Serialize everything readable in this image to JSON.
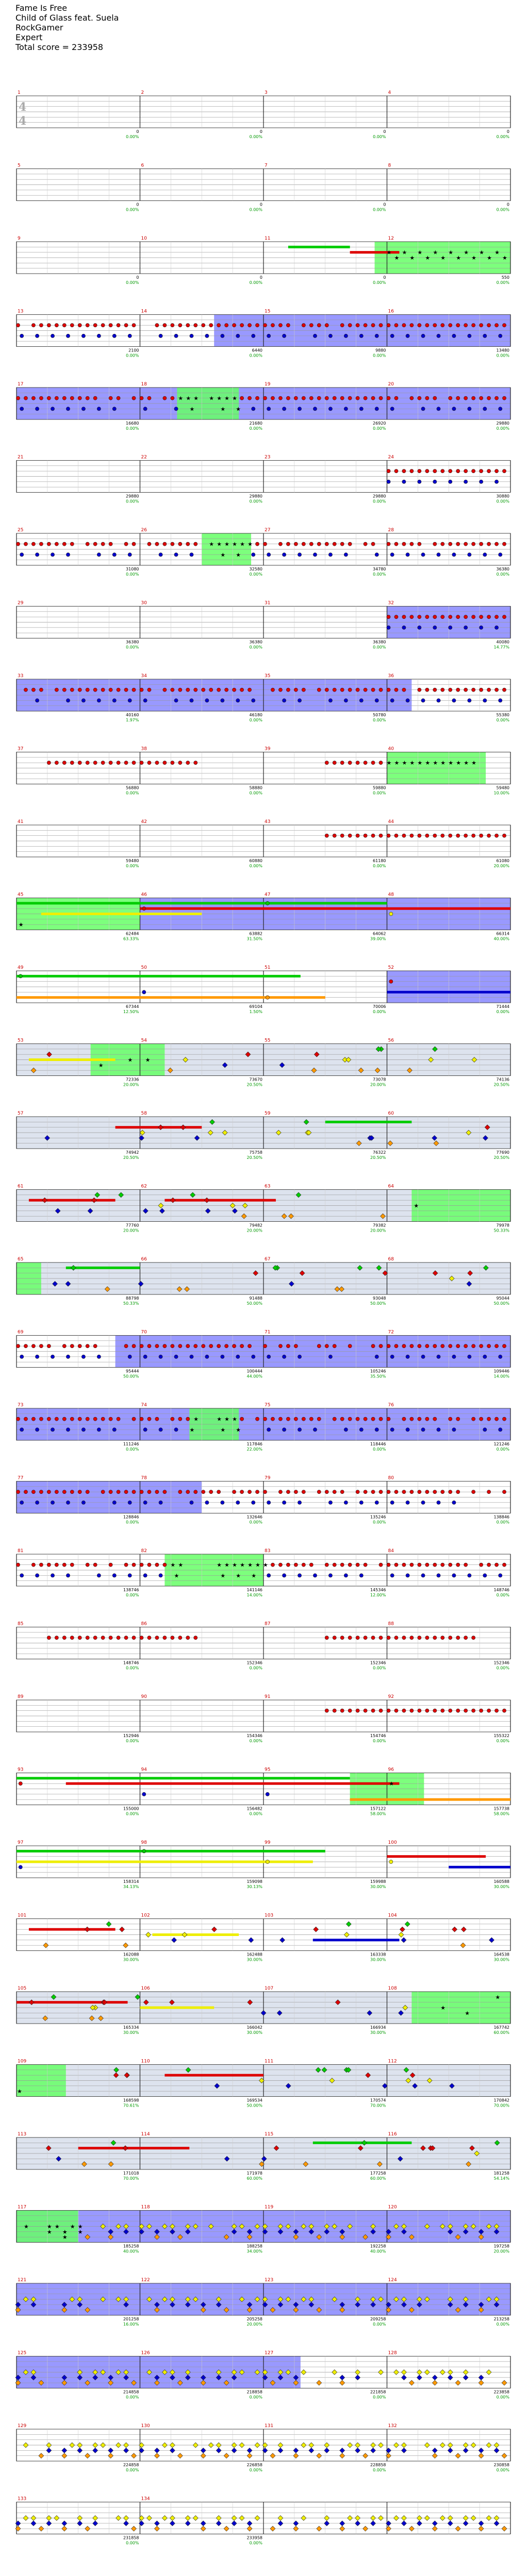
{
  "song": {
    "title": "Fame Is Free",
    "artist": "Child of Glass feat. Suela",
    "charter": "RockGamer",
    "difficulty": "Expert",
    "total_score_label": "Total score = 233958"
  },
  "time_signature": [
    "4",
    "4"
  ],
  "colors": {
    "green": "#00cc00",
    "red": "#dd0000",
    "yellow": "#eeee00",
    "blue": "#0000cc",
    "orange": "#ff9900",
    "sp_fill": "#66ff66",
    "solo_fill": "#9999ff",
    "bg_fill": "#dde3ee"
  },
  "measures": [
    {
      "n": "1",
      "score": "0",
      "pct": "0.00%"
    },
    {
      "n": "2",
      "score": "0",
      "pct": "0.00%"
    },
    {
      "n": "3",
      "score": "0",
      "pct": "0.00%"
    },
    {
      "n": "4",
      "score": "0",
      "pct": "0.00%"
    },
    {
      "n": "5",
      "score": "0",
      "pct": "0.00%"
    },
    {
      "n": "6",
      "score": "0",
      "pct": "0.00%"
    },
    {
      "n": "7",
      "score": "0",
      "pct": "0.00%"
    },
    {
      "n": "8",
      "score": "0",
      "pct": "0.00%"
    },
    {
      "n": "9",
      "score": "0",
      "pct": "0.00%"
    },
    {
      "n": "10",
      "score": "0",
      "pct": "0.00%"
    },
    {
      "n": "11",
      "score": "0",
      "pct": "0.00%"
    },
    {
      "n": "12",
      "score": "550",
      "pct": "0.00%"
    },
    {
      "n": "13",
      "score": "2100",
      "pct": "0.00%"
    },
    {
      "n": "14",
      "score": "6440",
      "pct": "0.00%"
    },
    {
      "n": "15",
      "score": "9880",
      "pct": "0.00%"
    },
    {
      "n": "16",
      "score": "13480",
      "pct": "0.00%"
    },
    {
      "n": "17",
      "score": "16680",
      "pct": "0.00%"
    },
    {
      "n": "18",
      "score": "21680",
      "pct": "0.00%"
    },
    {
      "n": "19",
      "score": "26920",
      "pct": "0.00%"
    },
    {
      "n": "20",
      "score": "29880",
      "pct": "0.00%"
    },
    {
      "n": "21",
      "score": "29880",
      "pct": "0.00%"
    },
    {
      "n": "22",
      "score": "29880",
      "pct": "0.00%"
    },
    {
      "n": "23",
      "score": "29880",
      "pct": "0.00%"
    },
    {
      "n": "24",
      "score": "30880",
      "pct": "0.00%"
    },
    {
      "n": "25",
      "score": "31080",
      "pct": "0.00%"
    },
    {
      "n": "26",
      "score": "32580",
      "pct": "0.00%"
    },
    {
      "n": "27",
      "score": "34780",
      "pct": "0.00%"
    },
    {
      "n": "28",
      "score": "36380",
      "pct": "0.00%"
    },
    {
      "n": "29",
      "score": "36380",
      "pct": "0.00%"
    },
    {
      "n": "30",
      "score": "36380",
      "pct": "0.00%"
    },
    {
      "n": "31",
      "score": "36380",
      "pct": "0.00%"
    },
    {
      "n": "32",
      "score": "40080",
      "pct": "14.77%"
    },
    {
      "n": "33",
      "score": "40160",
      "pct": "1.97%"
    },
    {
      "n": "34",
      "score": "46180",
      "pct": "0.00%"
    },
    {
      "n": "35",
      "score": "50780",
      "pct": "0.00%"
    },
    {
      "n": "36",
      "score": "55380",
      "pct": "0.00%"
    },
    {
      "n": "37",
      "score": "56880",
      "pct": "0.00%"
    },
    {
      "n": "38",
      "score": "58880",
      "pct": "0.00%"
    },
    {
      "n": "39",
      "score": "59880",
      "pct": "0.00%"
    },
    {
      "n": "40",
      "score": "59480",
      "pct": "10.00%"
    },
    {
      "n": "41",
      "score": "59480",
      "pct": "0.00%"
    },
    {
      "n": "42",
      "score": "60880",
      "pct": "0.00%"
    },
    {
      "n": "43",
      "score": "61180",
      "pct": "0.00%"
    },
    {
      "n": "44",
      "score": "61080",
      "pct": "20.00%"
    },
    {
      "n": "45",
      "score": "62484",
      "pct": "63.33%"
    },
    {
      "n": "46",
      "score": "63882",
      "pct": "31.50%"
    },
    {
      "n": "47",
      "score": "64062",
      "pct": "39.00%"
    },
    {
      "n": "48",
      "score": "66314",
      "pct": "40.00%"
    },
    {
      "n": "49",
      "score": "67344",
      "pct": "12.50%"
    },
    {
      "n": "50",
      "score": "69104",
      "pct": "1.50%"
    },
    {
      "n": "51",
      "score": "70006",
      "pct": "0.00%"
    },
    {
      "n": "52",
      "score": "71444",
      "pct": "0.00%"
    },
    {
      "n": "53",
      "score": "72336",
      "pct": "20.00%"
    },
    {
      "n": "54",
      "score": "73670",
      "pct": "20.50%"
    },
    {
      "n": "55",
      "score": "73078",
      "pct": "20.00%"
    },
    {
      "n": "56",
      "score": "74136",
      "pct": "20.50%"
    },
    {
      "n": "57",
      "score": "74942",
      "pct": "20.50%"
    },
    {
      "n": "58",
      "score": "75758",
      "pct": "20.50%"
    },
    {
      "n": "59",
      "score": "76322",
      "pct": "20.50%"
    },
    {
      "n": "60",
      "score": "77690",
      "pct": "20.50%"
    },
    {
      "n": "61",
      "score": "77760",
      "pct": "20.00%"
    },
    {
      "n": "62",
      "score": "79482",
      "pct": "20.00%"
    },
    {
      "n": "63",
      "score": "79382",
      "pct": "20.00%"
    },
    {
      "n": "64",
      "score": "79978",
      "pct": "50.33%"
    },
    {
      "n": "65",
      "score": "88798",
      "pct": "50.33%"
    },
    {
      "n": "66",
      "score": "91488",
      "pct": "50.00%"
    },
    {
      "n": "67",
      "score": "93048",
      "pct": "50.00%"
    },
    {
      "n": "68",
      "score": "95044",
      "pct": "50.00%"
    },
    {
      "n": "69",
      "score": "95444",
      "pct": "50.00%"
    },
    {
      "n": "70",
      "score": "100444",
      "pct": "44.00%"
    },
    {
      "n": "71",
      "score": "105246",
      "pct": "35.50%"
    },
    {
      "n": "72",
      "score": "109446",
      "pct": "14.00%"
    },
    {
      "n": "73",
      "score": "111246",
      "pct": "0.00%"
    },
    {
      "n": "74",
      "score": "117846",
      "pct": "22.00%"
    },
    {
      "n": "75",
      "score": "118446",
      "pct": "0.00%"
    },
    {
      "n": "76",
      "score": "121246",
      "pct": "0.00%"
    },
    {
      "n": "77",
      "score": "128846",
      "pct": "0.00%"
    },
    {
      "n": "78",
      "score": "132646",
      "pct": "0.00%"
    },
    {
      "n": "79",
      "score": "135246",
      "pct": "0.00%"
    },
    {
      "n": "80",
      "score": "138846",
      "pct": "0.00%"
    },
    {
      "n": "81",
      "score": "138746",
      "pct": "0.00%"
    },
    {
      "n": "82",
      "score": "141146",
      "pct": "14.00%"
    },
    {
      "n": "83",
      "score": "145346",
      "pct": "12.00%"
    },
    {
      "n": "84",
      "score": "148746",
      "pct": "0.00%"
    },
    {
      "n": "85",
      "score": "148746",
      "pct": "0.00%"
    },
    {
      "n": "86",
      "score": "152346",
      "pct": "0.00%"
    },
    {
      "n": "87",
      "score": "152346",
      "pct": "0.00%"
    },
    {
      "n": "88",
      "score": "152346",
      "pct": "0.00%"
    },
    {
      "n": "89",
      "score": "152946",
      "pct": "0.00%"
    },
    {
      "n": "90",
      "score": "154346",
      "pct": "0.00%"
    },
    {
      "n": "91",
      "score": "154746",
      "pct": "0.00%"
    },
    {
      "n": "92",
      "score": "155322",
      "pct": "0.00%"
    },
    {
      "n": "93",
      "score": "155000",
      "pct": "0.00%"
    },
    {
      "n": "94",
      "score": "156482",
      "pct": "0.00%"
    },
    {
      "n": "95",
      "score": "157122",
      "pct": "58.00%"
    },
    {
      "n": "96",
      "score": "157738",
      "pct": "58.00%"
    },
    {
      "n": "97",
      "score": "158314",
      "pct": "34.13%"
    },
    {
      "n": "98",
      "score": "159098",
      "pct": "30.13%"
    },
    {
      "n": "99",
      "score": "159988",
      "pct": "30.00%"
    },
    {
      "n": "100",
      "score": "160588",
      "pct": "30.00%"
    },
    {
      "n": "101",
      "score": "162088",
      "pct": "30.00%"
    },
    {
      "n": "102",
      "score": "162488",
      "pct": "30.00%"
    },
    {
      "n": "103",
      "score": "163338",
      "pct": "30.00%"
    },
    {
      "n": "104",
      "score": "164538",
      "pct": "30.00%"
    },
    {
      "n": "105",
      "score": "165334",
      "pct": "30.00%"
    },
    {
      "n": "106",
      "score": "166042",
      "pct": "30.00%"
    },
    {
      "n": "107",
      "score": "166934",
      "pct": "30.00%"
    },
    {
      "n": "108",
      "score": "167742",
      "pct": "60.00%"
    },
    {
      "n": "109",
      "score": "168598",
      "pct": "70.61%"
    },
    {
      "n": "110",
      "score": "169534",
      "pct": "50.00%"
    },
    {
      "n": "111",
      "score": "170574",
      "pct": "70.00%"
    },
    {
      "n": "112",
      "score": "170842",
      "pct": "70.00%"
    },
    {
      "n": "113",
      "score": "171018",
      "pct": "70.00%"
    },
    {
      "n": "114",
      "score": "171978",
      "pct": "60.00%"
    },
    {
      "n": "115",
      "score": "177258",
      "pct": "60.00%"
    },
    {
      "n": "116",
      "score": "181258",
      "pct": "54.14%"
    },
    {
      "n": "117",
      "score": "185258",
      "pct": "40.00%"
    },
    {
      "n": "118",
      "score": "188258",
      "pct": "34.00%"
    },
    {
      "n": "119",
      "score": "192258",
      "pct": "40.00%"
    },
    {
      "n": "120",
      "score": "197258",
      "pct": "20.00%"
    },
    {
      "n": "121",
      "score": "201258",
      "pct": "16.00%"
    },
    {
      "n": "122",
      "score": "205258",
      "pct": "20.00%"
    },
    {
      "n": "123",
      "score": "209258",
      "pct": "0.00%"
    },
    {
      "n": "124",
      "score": "213258",
      "pct": "0.00%"
    },
    {
      "n": "125",
      "score": "214858",
      "pct": "0.00%"
    },
    {
      "n": "126",
      "score": "218858",
      "pct": "0.00%"
    },
    {
      "n": "127",
      "score": "221858",
      "pct": "0.00%"
    },
    {
      "n": "128",
      "score": "223858",
      "pct": "0.00%"
    },
    {
      "n": "129",
      "score": "224858",
      "pct": "0.00%"
    },
    {
      "n": "130",
      "score": "226858",
      "pct": "0.00%"
    },
    {
      "n": "131",
      "score": "228858",
      "pct": "0.00%"
    },
    {
      "n": "132",
      "score": "230858",
      "pct": "0.00%"
    },
    {
      "n": "133",
      "score": "231858",
      "pct": "0.00%"
    },
    {
      "n": "134",
      "score": "233958",
      "pct": "0.00%"
    }
  ],
  "rows": [
    {
      "style": "empty"
    },
    {
      "style": "empty"
    },
    {
      "style": "intro",
      "sp": [
        [
          2.9,
          4
        ]
      ],
      "sustain": [
        [
          2.2,
          2.7,
          "green"
        ],
        [
          2.7,
          3.1,
          "red"
        ]
      ]
    },
    {
      "style": "dense",
      "solo": [
        [
          1.6,
          4
        ]
      ]
    },
    {
      "style": "dense",
      "solo": [
        [
          0,
          4
        ]
      ],
      "sp": [
        [
          1.3,
          1.8
        ]
      ]
    },
    {
      "style": "sparse_right"
    },
    {
      "style": "dense",
      "sp": [
        [
          1.5,
          1.9
        ]
      ]
    },
    {
      "style": "sparse_right",
      "solo": [
        [
          3.0,
          4
        ]
      ]
    },
    {
      "style": "dense",
      "solo": [
        [
          0,
          3.2
        ]
      ]
    },
    {
      "style": "mid",
      "sp": [
        [
          3.0,
          3.8
        ]
      ]
    },
    {
      "style": "mid_right"
    },
    {
      "style": "sustain",
      "sp": [
        [
          0,
          1
        ]
      ],
      "solo": [
        [
          1,
          4
        ]
      ],
      "sustain": [
        [
          0,
          3.0,
          "green"
        ],
        [
          1.0,
          4,
          "red"
        ],
        [
          0.2,
          1.5,
          "yellow"
        ]
      ]
    },
    {
      "style": "sustain",
      "solo": [
        [
          3,
          4
        ]
      ],
      "sustain": [
        [
          0,
          2.3,
          "green"
        ],
        [
          0,
          2.5,
          "orange"
        ],
        [
          3,
          4,
          "blue"
        ]
      ]
    },
    {
      "style": "scatter",
      "bg": true,
      "sp": [
        [
          0.6,
          1.2
        ]
      ],
      "sustain": [
        [
          0.1,
          0.8,
          "yellow"
        ]
      ]
    },
    {
      "style": "scatter",
      "bg": true,
      "sustain": [
        [
          2.5,
          3.2,
          "green"
        ],
        [
          0.8,
          1.5,
          "red"
        ]
      ]
    },
    {
      "style": "scatter",
      "bg": true,
      "sp": [
        [
          3.2,
          4
        ]
      ],
      "sustain": [
        [
          0.1,
          0.8,
          "red"
        ],
        [
          1.2,
          2.1,
          "red"
        ]
      ]
    },
    {
      "style": "scatter",
      "bg": true,
      "sp": [
        [
          0,
          0.2
        ]
      ],
      "sustain": [
        [
          0.4,
          1.0,
          "green"
        ]
      ]
    },
    {
      "style": "dense",
      "solo": [
        [
          0.8,
          4
        ]
      ]
    },
    {
      "style": "dense",
      "solo": [
        [
          0,
          4
        ]
      ],
      "sp": [
        [
          1.4,
          1.8
        ]
      ]
    },
    {
      "style": "dense",
      "solo": [
        [
          0,
          1.5
        ]
      ]
    },
    {
      "style": "dense",
      "sp": [
        [
          1.2,
          2.0
        ]
      ]
    },
    {
      "style": "mid"
    },
    {
      "style": "mid_right"
    },
    {
      "style": "sustain",
      "sp": [
        [
          2.7,
          3.3
        ]
      ],
      "sustain": [
        [
          0,
          2.7,
          "green"
        ],
        [
          0.4,
          3.1,
          "red"
        ],
        [
          2.7,
          4,
          "orange"
        ]
      ]
    },
    {
      "style": "sustain",
      "sustain": [
        [
          0,
          2.5,
          "green"
        ],
        [
          0,
          2.4,
          "yellow"
        ],
        [
          3,
          3.8,
          "red"
        ],
        [
          3.5,
          4,
          "blue"
        ]
      ]
    },
    {
      "style": "scatter",
      "sustain": [
        [
          0.1,
          0.8,
          "red"
        ],
        [
          1.1,
          1.8,
          "yellow"
        ],
        [
          2.4,
          3.1,
          "blue"
        ]
      ]
    },
    {
      "style": "scatter",
      "bg": true,
      "sp": [
        [
          3.2,
          4
        ]
      ],
      "sustain": [
        [
          0,
          0.9,
          "red"
        ],
        [
          1.0,
          1.6,
          "yellow"
        ]
      ]
    },
    {
      "style": "scatter",
      "bg": true,
      "sp": [
        [
          0,
          0.4
        ]
      ],
      "sustain": [
        [
          1.2,
          2.0,
          "red"
        ]
      ]
    },
    {
      "style": "scatter",
      "bg": true,
      "sustain": [
        [
          2.4,
          3.2,
          "green"
        ],
        [
          0.5,
          1.4,
          "red"
        ]
      ]
    },
    {
      "style": "stars",
      "solo": [
        [
          0,
          4
        ]
      ],
      "sp": [
        [
          0,
          0.5
        ]
      ]
    },
    {
      "style": "stars",
      "solo": [
        [
          0,
          4
        ]
      ]
    },
    {
      "style": "stars",
      "solo": [
        [
          0,
          2.3
        ]
      ]
    },
    {
      "style": "stars"
    },
    {
      "style": "stars"
    }
  ]
}
